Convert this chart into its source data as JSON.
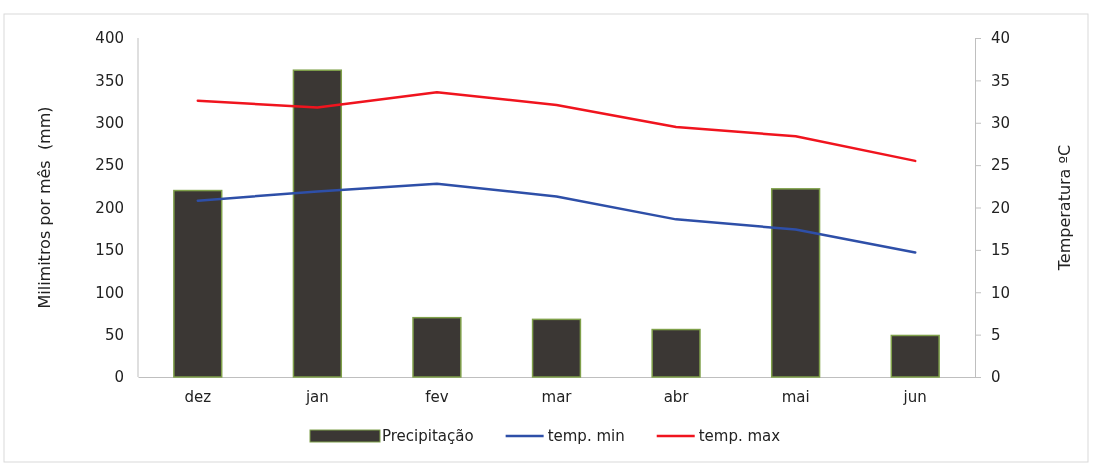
{
  "chart_data": {
    "type": "bar",
    "categories": [
      "dez",
      "jan",
      "fev",
      "mar",
      "abr",
      "mai",
      "jun"
    ],
    "series": [
      {
        "name": "Precipitação",
        "color": "#3b3734",
        "values": [
          220,
          362,
          70,
          68,
          56,
          222,
          49
        ]
      },
      {
        "name": "temp. min",
        "type": "line",
        "axis": "y2",
        "color": "#2e4fa8",
        "values": [
          20.8,
          21.9,
          22.8,
          21.3,
          18.6,
          17.4,
          14.7
        ]
      },
      {
        "name": "temp. max",
        "type": "line",
        "axis": "y2",
        "color": "#f0141e",
        "values": [
          32.6,
          31.8,
          33.6,
          32.1,
          29.5,
          28.4,
          25.5
        ]
      }
    ],
    "ylabel": "Milimitros por mês  (mm)",
    "y2label": "Temperatura ºC",
    "ylim": [
      0,
      400
    ],
    "yticks": [
      0,
      50,
      100,
      150,
      200,
      250,
      300,
      350,
      400
    ],
    "y2lim": [
      0,
      40
    ],
    "y2ticks": [
      0,
      5,
      10,
      15,
      20,
      25,
      30,
      35,
      40
    ],
    "grid": false,
    "legend": "bottom",
    "marker": "none",
    "line_style": "solid"
  }
}
